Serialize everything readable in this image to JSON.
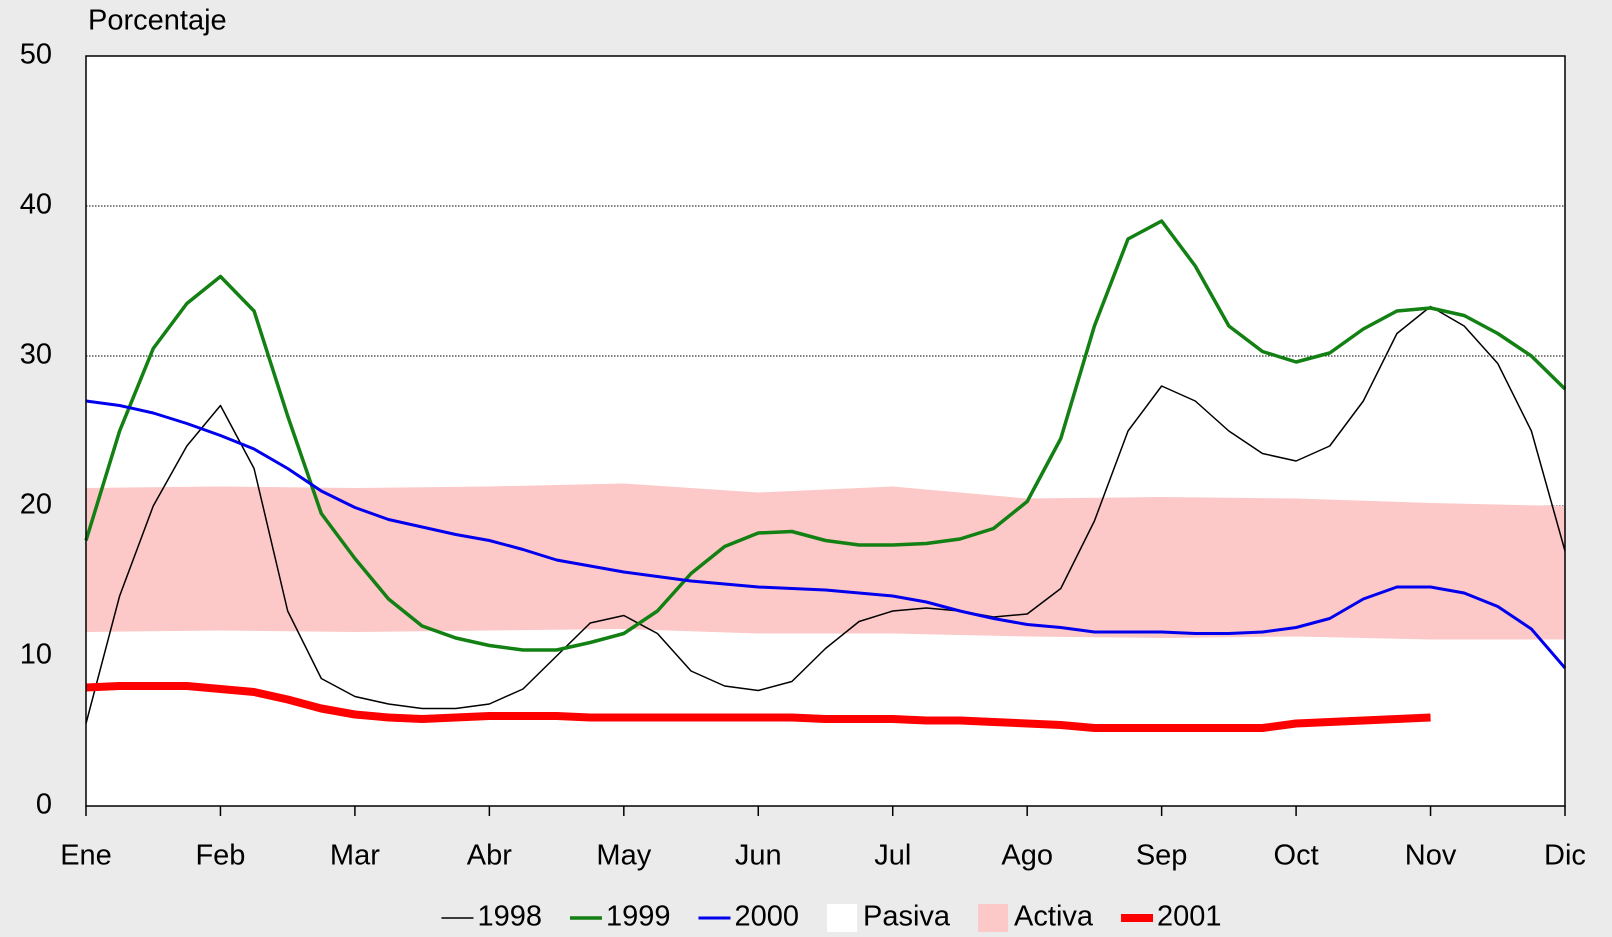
{
  "chart_data": {
    "type": "line",
    "y_label": "Porcentaje",
    "x": [
      0,
      0.25,
      0.5,
      0.75,
      1,
      1.25,
      1.5,
      1.75,
      2,
      2.25,
      2.5,
      2.75,
      3,
      3.25,
      3.5,
      3.75,
      4,
      4.25,
      4.5,
      4.75,
      5,
      5.25,
      5.5,
      5.75,
      6,
      6.25,
      6.5,
      6.75,
      7,
      7.25,
      7.5,
      7.75,
      8,
      8.25,
      8.5,
      8.75,
      9,
      9.25,
      9.5,
      9.75,
      10,
      10.25,
      10.5,
      10.75,
      11
    ],
    "xlim": [
      0,
      11
    ],
    "xticks": [
      {
        "value": 0,
        "label": "Ene"
      },
      {
        "value": 1,
        "label": "Feb"
      },
      {
        "value": 2,
        "label": "Mar"
      },
      {
        "value": 3,
        "label": "Abr"
      },
      {
        "value": 4,
        "label": "May"
      },
      {
        "value": 5,
        "label": "Jun"
      },
      {
        "value": 6,
        "label": "Jul"
      },
      {
        "value": 7,
        "label": "Ago"
      },
      {
        "value": 8,
        "label": "Sep"
      },
      {
        "value": 9,
        "label": "Oct"
      },
      {
        "value": 10,
        "label": "Nov"
      },
      {
        "value": 11,
        "label": "Dic"
      }
    ],
    "ylim": [
      0,
      50
    ],
    "yticks": [
      0,
      10,
      20,
      30,
      40,
      50
    ],
    "grid": true,
    "series": [
      {
        "name": "1998",
        "color": "#000000",
        "width": 1.5,
        "values": [
          5.5,
          14,
          20,
          24,
          26.7,
          22.5,
          13,
          8.5,
          7.3,
          6.8,
          6.5,
          6.5,
          6.8,
          7.8,
          10,
          12.2,
          12.7,
          11.5,
          9,
          8,
          7.7,
          8.3,
          10.5,
          12.3,
          13,
          13.2,
          13,
          12.6,
          12.8,
          14.5,
          19,
          25,
          28,
          27,
          25,
          23.5,
          23,
          24,
          27,
          31.5,
          33.3,
          32,
          29.5,
          25,
          17
        ]
      },
      {
        "name": "1999",
        "color": "#128012",
        "width": 3.5,
        "values": [
          17.7,
          25,
          30.5,
          33.5,
          35.3,
          33,
          26,
          19.5,
          16.5,
          13.8,
          12,
          11.2,
          10.7,
          10.4,
          10.4,
          10.9,
          11.5,
          13,
          15.5,
          17.3,
          18.2,
          18.3,
          17.7,
          17.4,
          17.4,
          17.5,
          17.8,
          18.5,
          20.3,
          24.5,
          32,
          37.8,
          39,
          36,
          32,
          30.3,
          29.6,
          30.2,
          31.8,
          33,
          33.2,
          32.7,
          31.5,
          30,
          27.8
        ]
      },
      {
        "name": "2000",
        "color": "#0000ee",
        "width": 3,
        "values": [
          27,
          26.7,
          26.2,
          25.5,
          24.7,
          23.8,
          22.5,
          21,
          19.9,
          19.1,
          18.6,
          18.1,
          17.7,
          17.1,
          16.4,
          16,
          15.6,
          15.3,
          15,
          14.8,
          14.6,
          14.5,
          14.4,
          14.2,
          14,
          13.6,
          13,
          12.5,
          12.1,
          11.9,
          11.6,
          11.6,
          11.6,
          11.5,
          11.5,
          11.6,
          11.9,
          12.5,
          13.8,
          14.6,
          14.6,
          14.2,
          13.3,
          11.8,
          9.2
        ]
      },
      {
        "name": "Pasiva",
        "color": "#ffffff",
        "kind": "area",
        "x": [
          0,
          1,
          2,
          3,
          4,
          5,
          6,
          7,
          8,
          9,
          10,
          11
        ],
        "values": [
          11.6,
          11.7,
          11.6,
          11.7,
          11.8,
          11.5,
          11.5,
          11.3,
          11.2,
          11.3,
          11.1,
          11.1
        ]
      },
      {
        "name": "Activa",
        "color": "#fcc8c8",
        "kind": "area",
        "stacked": true,
        "x": [
          0,
          1,
          2,
          3,
          4,
          5,
          6,
          7,
          8,
          9,
          10,
          11
        ],
        "values": [
          9.6,
          9.6,
          9.6,
          9.6,
          9.7,
          9.4,
          9.8,
          9.2,
          9.4,
          9.2,
          9.1,
          8.9
        ]
      },
      {
        "name": "2001",
        "color": "#ff0000",
        "width": 8,
        "values": [
          7.9,
          8,
          8,
          8,
          7.8,
          7.6,
          7.1,
          6.5,
          6.1,
          5.9,
          5.8,
          5.9,
          6,
          6,
          6,
          5.9,
          5.9,
          5.9,
          5.9,
          5.9,
          5.9,
          5.9,
          5.8,
          5.8,
          5.8,
          5.7,
          5.7,
          5.6,
          5.5,
          5.4,
          5.2,
          5.2,
          5.2,
          5.2,
          5.2,
          5.2,
          5.5,
          5.6,
          5.7,
          5.8,
          5.9,
          null,
          null,
          null,
          null
        ]
      }
    ]
  }
}
